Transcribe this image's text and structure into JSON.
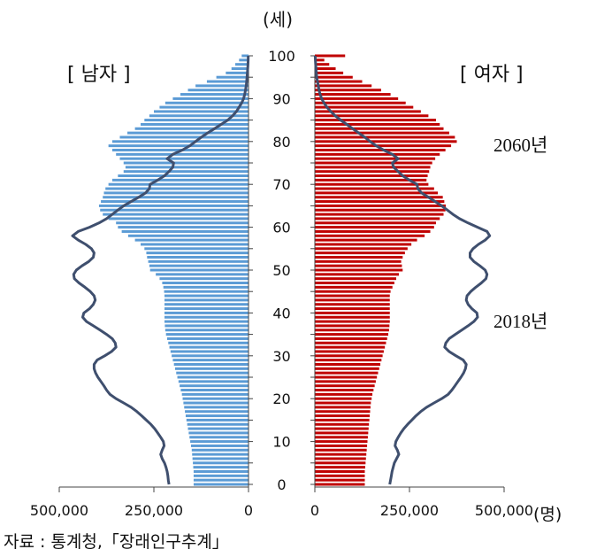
{
  "chart_data": {
    "type": "population-pyramid",
    "units": {
      "age": "(세)",
      "count": "(명)"
    },
    "legend": {
      "male": "[ 남자 ]",
      "female": "[ 여자 ]"
    },
    "annotations": {
      "y2060": "2060년",
      "y2018": "2018년"
    },
    "source": "자료 : 통계청,「장래인구추계」",
    "age_ticks": [
      "0",
      "10",
      "20",
      "30",
      "40",
      "50",
      "60",
      "70",
      "80",
      "90",
      "100"
    ],
    "male_axis_ticks": [
      "500,000",
      "250,000",
      "0"
    ],
    "female_axis_ticks": [
      "0",
      "250,000",
      "500,000"
    ],
    "colors": {
      "male_bar": "#5b9bd5",
      "female_bar": "#c00000",
      "line_2018": "#3f4f6e",
      "axis": "#444444"
    },
    "series": [
      {
        "name": "2060년",
        "style": "bars",
        "male": [
          145000,
          145000,
          145000,
          145000,
          146000,
          147000,
          148000,
          149000,
          150000,
          152000,
          154000,
          156000,
          158000,
          160000,
          162000,
          164000,
          166000,
          168000,
          170000,
          172000,
          174000,
          176000,
          179000,
          182000,
          185000,
          188000,
          191000,
          194000,
          197000,
          200000,
          203000,
          206000,
          209000,
          212000,
          215000,
          218000,
          220000,
          221000,
          222000,
          222000,
          222000,
          222000,
          222000,
          222000,
          222000,
          223000,
          225000,
          228000,
          235000,
          245000,
          260000,
          262000,
          265000,
          268000,
          270000,
          275000,
          285000,
          300000,
          318000,
          335000,
          345000,
          350000,
          370000,
          385000,
          392000,
          395000,
          390000,
          385000,
          382000,
          378000,
          370000,
          360000,
          345000,
          330000,
          325000,
          330000,
          340000,
          350000,
          360000,
          370000,
          360000,
          340000,
          320000,
          300000,
          285000,
          275000,
          262000,
          250000,
          235000,
          220000,
          200000,
          180000,
          160000,
          140000,
          110000,
          85000,
          60000,
          45000,
          35000,
          25000,
          18000
        ],
        "female": [
          132000,
          132000,
          132000,
          132000,
          133000,
          134000,
          135000,
          136000,
          137000,
          138000,
          139000,
          140000,
          141000,
          142000,
          143000,
          144000,
          145000,
          146000,
          147000,
          148000,
          150000,
          152000,
          155000,
          158000,
          161000,
          164000,
          167000,
          170000,
          173000,
          176000,
          179000,
          182000,
          185000,
          188000,
          191000,
          194000,
          196000,
          197000,
          198000,
          198000,
          198000,
          198000,
          198000,
          198000,
          198000,
          200000,
          205000,
          210000,
          215000,
          222000,
          232000,
          230000,
          228000,
          232000,
          238000,
          245000,
          255000,
          270000,
          290000,
          305000,
          315000,
          320000,
          330000,
          340000,
          345000,
          346000,
          342000,
          338000,
          325000,
          315000,
          300000,
          295000,
          298000,
          302000,
          305000,
          310000,
          318000,
          330000,
          345000,
          360000,
          375000,
          370000,
          355000,
          340000,
          330000,
          320000,
          300000,
          280000,
          260000,
          240000,
          220000,
          200000,
          175000,
          150000,
          125000,
          100000,
          75000,
          55000,
          38000,
          25000,
          80000
        ]
      },
      {
        "name": "2018년",
        "style": "line",
        "male": [
          210000,
          212000,
          213000,
          215000,
          218000,
          222000,
          228000,
          232000,
          228000,
          223000,
          225000,
          232000,
          240000,
          248000,
          258000,
          270000,
          282000,
          295000,
          310000,
          330000,
          350000,
          366000,
          375000,
          382000,
          390000,
          398000,
          404000,
          408000,
          408000,
          400000,
          380000,
          362000,
          350000,
          352000,
          360000,
          375000,
          392000,
          410000,
          428000,
          438000,
          435000,
          420000,
          410000,
          405000,
          408000,
          418000,
          432000,
          448000,
          460000,
          462000,
          455000,
          440000,
          422000,
          410000,
          408000,
          415000,
          430000,
          450000,
          465000,
          450000,
          420000,
          395000,
          375000,
          360000,
          345000,
          330000,
          310000,
          290000,
          272000,
          262000,
          260000,
          240000,
          222000,
          210000,
          200000,
          198000,
          215000,
          200000,
          175000,
          155000,
          140000,
          125000,
          108000,
          90000,
          72000,
          55000,
          42000,
          32000,
          25000,
          18000,
          13000,
          10000,
          8000,
          6000,
          5000,
          4000,
          3000,
          2000,
          1500,
          1000,
          800
        ],
        "female": [
          198000,
          200000,
          202000,
          204000,
          207000,
          210000,
          216000,
          222000,
          218000,
          212000,
          214000,
          220000,
          227000,
          235000,
          245000,
          256000,
          267000,
          280000,
          295000,
          315000,
          335000,
          352000,
          362000,
          370000,
          378000,
          386000,
          393000,
          398000,
          400000,
          392000,
          373000,
          355000,
          343000,
          346000,
          355000,
          371000,
          388000,
          405000,
          420000,
          430000,
          428000,
          415000,
          405000,
          400000,
          402000,
          412000,
          425000,
          440000,
          452000,
          455000,
          450000,
          436000,
          420000,
          410000,
          410000,
          418000,
          432000,
          450000,
          462000,
          455000,
          430000,
          405000,
          382000,
          365000,
          350000,
          335000,
          318000,
          300000,
          282000,
          272000,
          270000,
          250000,
          232000,
          220000,
          208000,
          205000,
          220000,
          205000,
          182000,
          162000,
          146000,
          132000,
          116000,
          100000,
          84000,
          68000,
          54000,
          42000,
          32000,
          24000,
          18000,
          14000,
          11000,
          9000,
          7000,
          5000,
          4000,
          3000,
          2000,
          1500,
          1000
        ]
      }
    ],
    "xlim": [
      0,
      500000
    ],
    "ylim": [
      0,
      100
    ]
  }
}
